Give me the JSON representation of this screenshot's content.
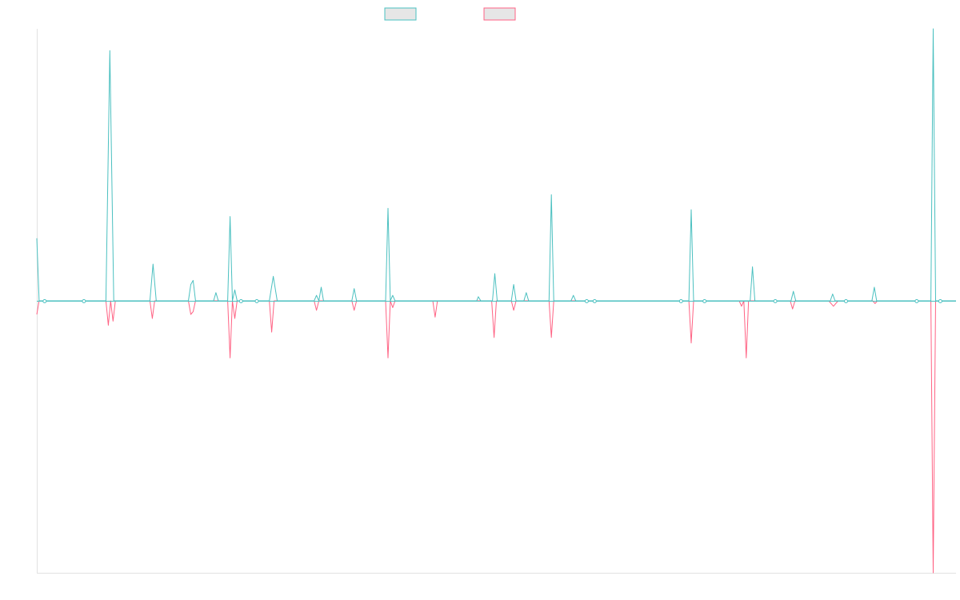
{
  "colors": {
    "series_a": "#4bc0c0",
    "series_b": "#ff6384",
    "axis": "#e2e2e2",
    "legend_fill": "#e6e6e6",
    "background": "#ffffff"
  },
  "legend": {
    "placement": "top-center",
    "entries": [
      {
        "name": "",
        "color": "#4bc0c0"
      },
      {
        "name": "",
        "color": "#ff6384"
      }
    ]
  },
  "chart_data": {
    "type": "line",
    "title": "",
    "xlabel": "",
    "ylabel": "",
    "xlim": [
      0,
      117
    ],
    "ylim": [
      -1,
      1
    ],
    "grid": false,
    "zero_markers": [
      1,
      6,
      26,
      28,
      70,
      71,
      82,
      85,
      94,
      103,
      112,
      115
    ],
    "series": [
      {
        "name": "",
        "color": "#4bc0c0",
        "points": [
          [
            0,
            0.23
          ],
          [
            0.3,
            0
          ],
          [
            8.8,
            0
          ],
          [
            9.3,
            0.92
          ],
          [
            9.8,
            0
          ],
          [
            14.4,
            0
          ],
          [
            14.8,
            0.135
          ],
          [
            15.2,
            0
          ],
          [
            19.3,
            0
          ],
          [
            19.6,
            0.06
          ],
          [
            19.9,
            0.075
          ],
          [
            20.2,
            0
          ],
          [
            22.5,
            0
          ],
          [
            22.8,
            0.03
          ],
          [
            23.1,
            0
          ],
          [
            24.3,
            0
          ],
          [
            24.6,
            0.31
          ],
          [
            24.9,
            0
          ],
          [
            25.2,
            0.04
          ],
          [
            25.5,
            0
          ],
          [
            29.6,
            0
          ],
          [
            30.1,
            0.09
          ],
          [
            30.6,
            0
          ],
          [
            35.3,
            0
          ],
          [
            35.6,
            0.02
          ],
          [
            35.9,
            0
          ],
          [
            36.2,
            0.05
          ],
          [
            36.5,
            0
          ],
          [
            40.1,
            0
          ],
          [
            40.4,
            0.045
          ],
          [
            40.7,
            0
          ],
          [
            44.4,
            0
          ],
          [
            44.7,
            0.34
          ],
          [
            45.0,
            0
          ],
          [
            45.3,
            0.02
          ],
          [
            45.6,
            0
          ],
          [
            56.0,
            0
          ],
          [
            56.2,
            0.015
          ],
          [
            56.5,
            0
          ],
          [
            58.0,
            0
          ],
          [
            58.3,
            0.1
          ],
          [
            58.6,
            0
          ],
          [
            60.4,
            0
          ],
          [
            60.7,
            0.06
          ],
          [
            61.0,
            0
          ],
          [
            62.0,
            0
          ],
          [
            62.3,
            0.03
          ],
          [
            62.6,
            0
          ],
          [
            65.2,
            0
          ],
          [
            65.5,
            0.39
          ],
          [
            65.8,
            0
          ],
          [
            68.0,
            0
          ],
          [
            68.3,
            0.02
          ],
          [
            68.6,
            0
          ],
          [
            83.0,
            0
          ],
          [
            83.3,
            0.335
          ],
          [
            83.6,
            0
          ],
          [
            90.8,
            0
          ],
          [
            91.1,
            0.125
          ],
          [
            91.4,
            0
          ],
          [
            96.0,
            0
          ],
          [
            96.3,
            0.035
          ],
          [
            96.6,
            0
          ],
          [
            101.0,
            0
          ],
          [
            101.3,
            0.025
          ],
          [
            101.6,
            0
          ],
          [
            106.3,
            0
          ],
          [
            106.6,
            0.05
          ],
          [
            106.9,
            0
          ],
          [
            113.8,
            0
          ],
          [
            114.1,
            1.0
          ],
          [
            114.4,
            0
          ],
          [
            117,
            0
          ]
        ]
      },
      {
        "name": "",
        "color": "#ff6384",
        "points": [
          [
            0,
            -0.05
          ],
          [
            0.3,
            0
          ],
          [
            8.8,
            0
          ],
          [
            9.1,
            -0.09
          ],
          [
            9.4,
            0
          ],
          [
            9.7,
            -0.075
          ],
          [
            10.0,
            0
          ],
          [
            14.4,
            0
          ],
          [
            14.7,
            -0.065
          ],
          [
            15.0,
            0
          ],
          [
            19.3,
            0
          ],
          [
            19.6,
            -0.05
          ],
          [
            19.9,
            -0.04
          ],
          [
            20.2,
            0
          ],
          [
            24.3,
            0
          ],
          [
            24.6,
            -0.21
          ],
          [
            24.9,
            0
          ],
          [
            25.2,
            -0.065
          ],
          [
            25.5,
            0
          ],
          [
            29.6,
            0
          ],
          [
            29.9,
            -0.115
          ],
          [
            30.2,
            0
          ],
          [
            35.3,
            0
          ],
          [
            35.6,
            -0.035
          ],
          [
            35.9,
            0
          ],
          [
            40.1,
            0
          ],
          [
            40.4,
            -0.035
          ],
          [
            40.7,
            0
          ],
          [
            44.4,
            0
          ],
          [
            44.7,
            -0.21
          ],
          [
            45.0,
            0
          ],
          [
            45.3,
            -0.025
          ],
          [
            45.6,
            0
          ],
          [
            50.4,
            0
          ],
          [
            50.7,
            -0.06
          ],
          [
            51.0,
            0
          ],
          [
            57.9,
            0
          ],
          [
            58.2,
            -0.135
          ],
          [
            58.5,
            0
          ],
          [
            60.4,
            0
          ],
          [
            60.7,
            -0.035
          ],
          [
            61.0,
            0
          ],
          [
            65.2,
            0
          ],
          [
            65.5,
            -0.135
          ],
          [
            65.8,
            0
          ],
          [
            83.0,
            0
          ],
          [
            83.3,
            -0.155
          ],
          [
            83.6,
            0
          ],
          [
            89.4,
            0
          ],
          [
            89.7,
            -0.02
          ],
          [
            90.0,
            0
          ],
          [
            90.3,
            -0.21
          ],
          [
            90.6,
            0
          ],
          [
            95.9,
            0
          ],
          [
            96.2,
            -0.03
          ],
          [
            96.5,
            0
          ],
          [
            100.8,
            0
          ],
          [
            101.4,
            -0.02
          ],
          [
            102.0,
            0
          ],
          [
            106.4,
            0
          ],
          [
            106.7,
            -0.01
          ],
          [
            107.0,
            0
          ],
          [
            113.8,
            0
          ],
          [
            114.1,
            -1.0
          ],
          [
            114.4,
            0
          ],
          [
            117,
            0
          ]
        ]
      }
    ]
  }
}
